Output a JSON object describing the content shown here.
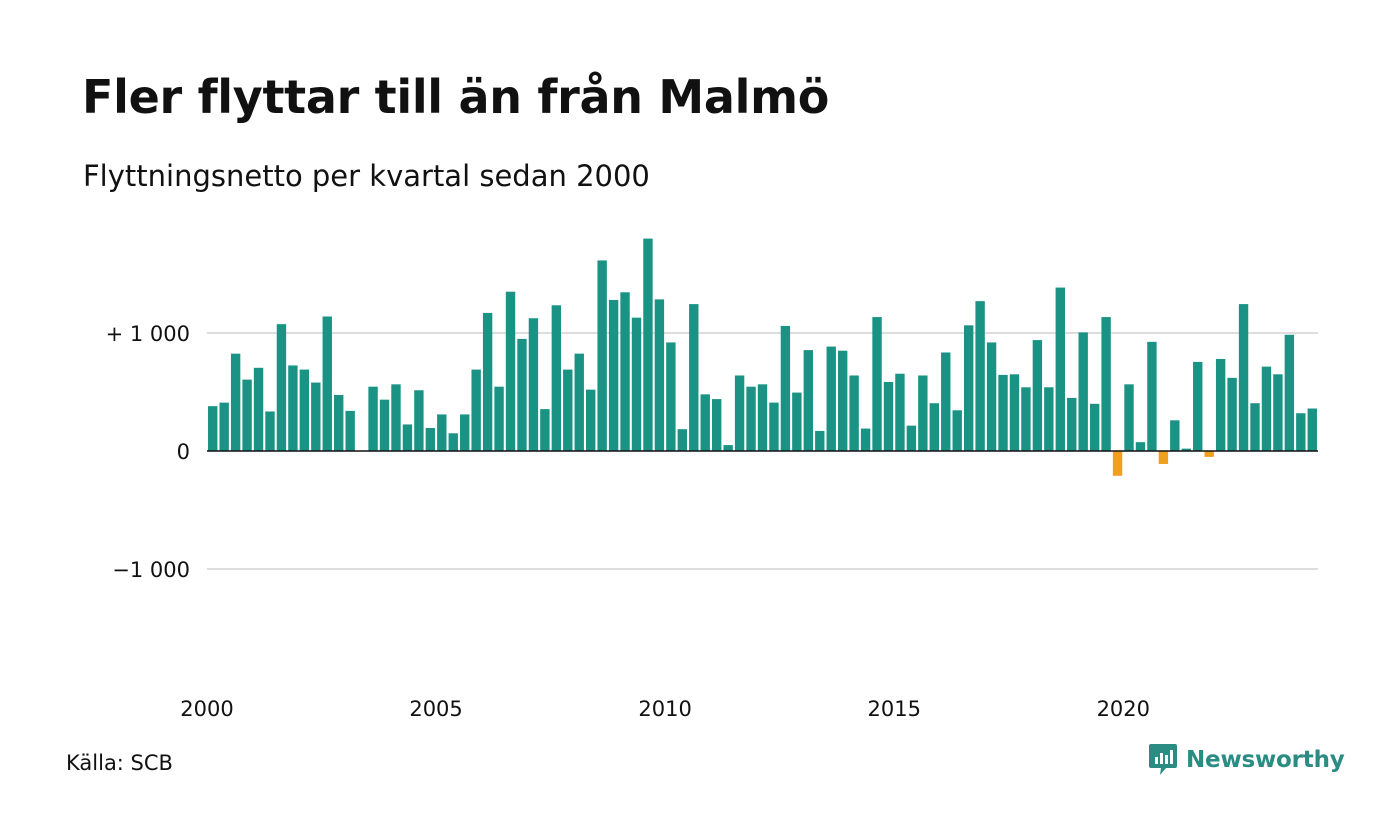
{
  "title": "Fler flyttar till än från Malmö",
  "subtitle": "Flyttningsnetto per kvartal sedan 2000",
  "source": "Källa: SCB",
  "brand": "Newsworthy",
  "colors": {
    "positive": "#1a9385",
    "negative": "#f0a020",
    "grid": "#dddddd",
    "axis": "#111111",
    "brand": "#2a8c83"
  },
  "chart_data": {
    "type": "bar",
    "x_start": 2000,
    "periods_per_year": 4,
    "x_ticks": [
      "2000",
      "2005",
      "2010",
      "2015",
      "2020"
    ],
    "y_ticks": [
      {
        "value": 1000,
        "label": "+ 1 000"
      },
      {
        "value": 0,
        "label": "0"
      },
      {
        "value": -1000,
        "label": "−1 000"
      }
    ],
    "ylim": [
      -1850,
      1850
    ],
    "grid": true,
    "values": [
      380,
      410,
      825,
      605,
      705,
      335,
      1075,
      725,
      690,
      580,
      1140,
      475,
      340,
      0,
      545,
      435,
      565,
      225,
      515,
      195,
      310,
      150,
      310,
      690,
      1170,
      545,
      1350,
      950,
      1125,
      355,
      1235,
      690,
      825,
      520,
      1615,
      1280,
      1345,
      1130,
      1800,
      1285,
      920,
      185,
      1245,
      480,
      440,
      50,
      640,
      545,
      565,
      410,
      1060,
      495,
      855,
      170,
      885,
      850,
      640,
      190,
      1135,
      585,
      655,
      215,
      640,
      405,
      835,
      345,
      1065,
      1270,
      920,
      645,
      650,
      540,
      940,
      540,
      1385,
      450,
      1005,
      400,
      1135,
      -210,
      565,
      75,
      925,
      -110,
      260,
      20,
      755,
      -50,
      780,
      620,
      1245,
      405,
      715,
      650,
      985,
      320,
      360
    ]
  }
}
